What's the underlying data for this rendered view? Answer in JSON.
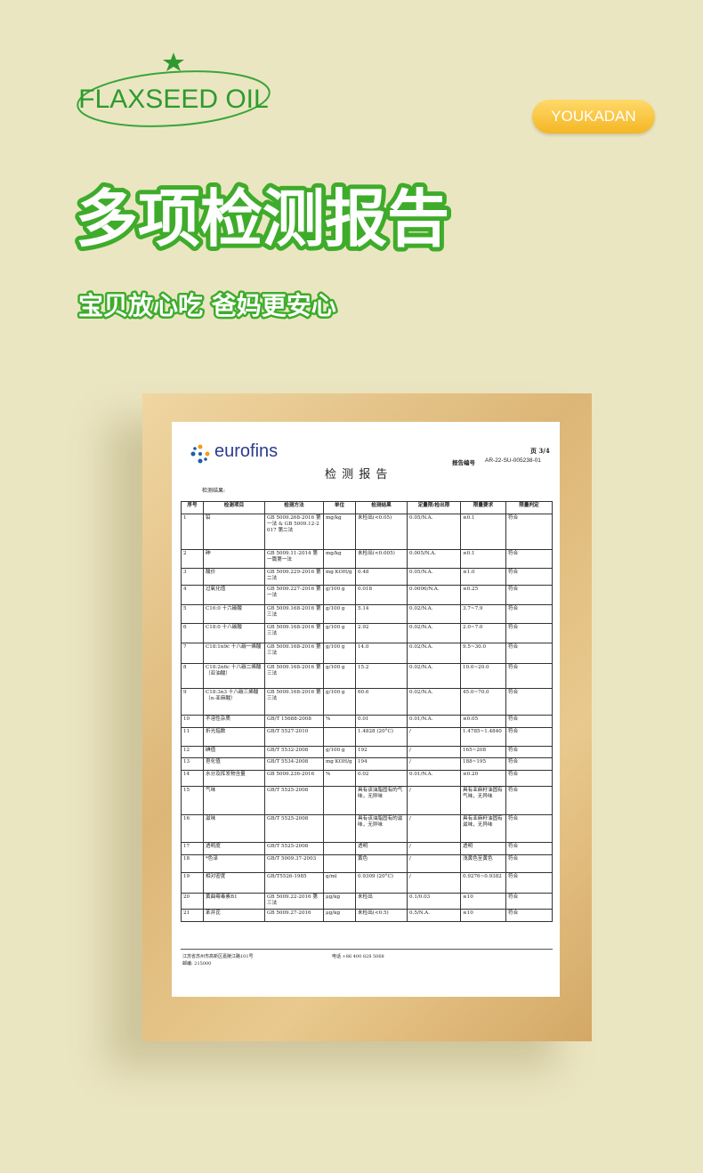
{
  "header": {
    "logo": "FLAXSEED OIL",
    "brand": "YOUKADAN",
    "title": "多项检测报告",
    "subtitle": "宝贝放心吃 爸妈更安心"
  },
  "report": {
    "lab": "eurofins",
    "title": "检 测 报 告",
    "page": "页 3/4",
    "report_no_label": "报告编号",
    "report_no": "AR-22-SU-005238-01",
    "section": "检测结果:",
    "table": {
      "headers": [
        "序号",
        "检测项目",
        "检测方法",
        "单位",
        "检测结果",
        "定量限/检出限",
        "限量要求",
        "限量判定"
      ],
      "rows": [
        [
          "1",
          "铅",
          "GB 5009.268-2016 第一法 & GB 5009.12-2017 第二法",
          "mg/kg",
          "未检出(<0.05)",
          "0.05/N.A.",
          "≤0.1",
          "符合"
        ],
        [
          "2",
          "砷",
          "GB 5009.11-2014 第一篇第一法",
          "mg/kg",
          "未检出(<0.005)",
          "0.005/N.A.",
          "≤0.1",
          "符合"
        ],
        [
          "3",
          "酸价",
          "GB 5009.229-2016 第二法",
          "mg KOH/g",
          "0.48",
          "0.05/N.A.",
          "≤1.0",
          "符合"
        ],
        [
          "4",
          "过氧化值",
          "GB 5009.227-2016 第一法",
          "g/100 g",
          "0.018",
          "0.0006/N.A.",
          "≤0.25",
          "符合"
        ],
        [
          "5",
          "C16:0 十六碳酸",
          "GB 5009.168-2016 第三法",
          "g/100 g",
          "5.14",
          "0.02/N.A.",
          "3.7~7.9",
          "符合"
        ],
        [
          "6",
          "C18:0 十八碳酸",
          "GB 5009.168-2016 第三法",
          "g/100 g",
          "2.92",
          "0.02/N.A.",
          "2.0~7.0",
          "符合"
        ],
        [
          "7",
          "C18:1n9c 十八碳一烯酸",
          "GB 5009.168-2016 第三法",
          "g/100 g",
          "14.0",
          "0.02/N.A.",
          "9.5~30.0",
          "符合"
        ],
        [
          "8",
          "C18:2n6c 十八碳二烯酸（亚油酸）",
          "GB 5009.168-2016 第三法",
          "g/100 g",
          "15.2",
          "0.02/N.A.",
          "10.0~20.0",
          "符合"
        ],
        [
          "9",
          "C18:3n3 十八碳三烯酸（α-亚麻酸）",
          "GB 5009.168-2016 第三法",
          "g/100 g",
          "60.6",
          "0.02/N.A.",
          "45.0~70.0",
          "符合"
        ],
        [
          "10",
          "不溶性杂质",
          "GB/T 15688-2008",
          "%",
          "0.01",
          "0.01/N.A.",
          "≤0.05",
          "符合"
        ],
        [
          "11",
          "折光指数",
          "GB/T 5527-2010",
          "",
          "1.4828 (20°C)",
          "/",
          "1.4785~1.4840",
          "符合"
        ],
        [
          "12",
          "碘值",
          "GB/T 5532-2008",
          "g/100 g",
          "192",
          "/",
          "165~208",
          "符合"
        ],
        [
          "13",
          "皂化值",
          "GB/T 5534-2008",
          "mg KOH/g",
          "194",
          "/",
          "188~195",
          "符合"
        ],
        [
          "14",
          "水分及挥发物含量",
          "GB 5009.236-2016",
          "%",
          "0.02",
          "0.01/N.A.",
          "≤0.20",
          "符合"
        ],
        [
          "15",
          "气味",
          "GB/T 5525-2008",
          "",
          "具有该油脂固有的气味，无异味",
          "/",
          "具有亚麻籽油固有气味，无异味",
          "符合"
        ],
        [
          "16",
          "滋味",
          "GB/T 5525-2008",
          "",
          "具有该油脂固有的滋味，无异味",
          "/",
          "具有亚麻籽油固有滋味，无异味",
          "符合"
        ],
        [
          "17",
          "透明度",
          "GB/T 5525-2008",
          "",
          "透明",
          "/",
          "透明",
          "符合"
        ],
        [
          "18",
          "*色泽",
          "GB/T 5009.37-2003",
          "",
          "黄色",
          "/",
          "浅黄色至黄色",
          "符合"
        ],
        [
          "19",
          "相对密度",
          "GB/T5526-1985",
          "g/ml",
          "0.9309 (20°C)",
          "/",
          "0.9276~0.9382",
          "符合"
        ],
        [
          "20",
          "黄曲霉毒素B1",
          "GB 5009.22-2016 第三法",
          "μg/kg",
          "未检出",
          "0.1/0.03",
          "≤10",
          "符合"
        ],
        [
          "21",
          "苯并芘",
          "GB 5009.27-2016",
          "μg/kg",
          "未检出(<0.5)",
          "0.5/N.A.",
          "≤10",
          "符合"
        ]
      ]
    },
    "footer": {
      "address": "江苏省苏州市高新区嘉陵江路101号",
      "postcode": "邮编: 215000",
      "phone": "电话 +86 400 828 5068"
    }
  }
}
